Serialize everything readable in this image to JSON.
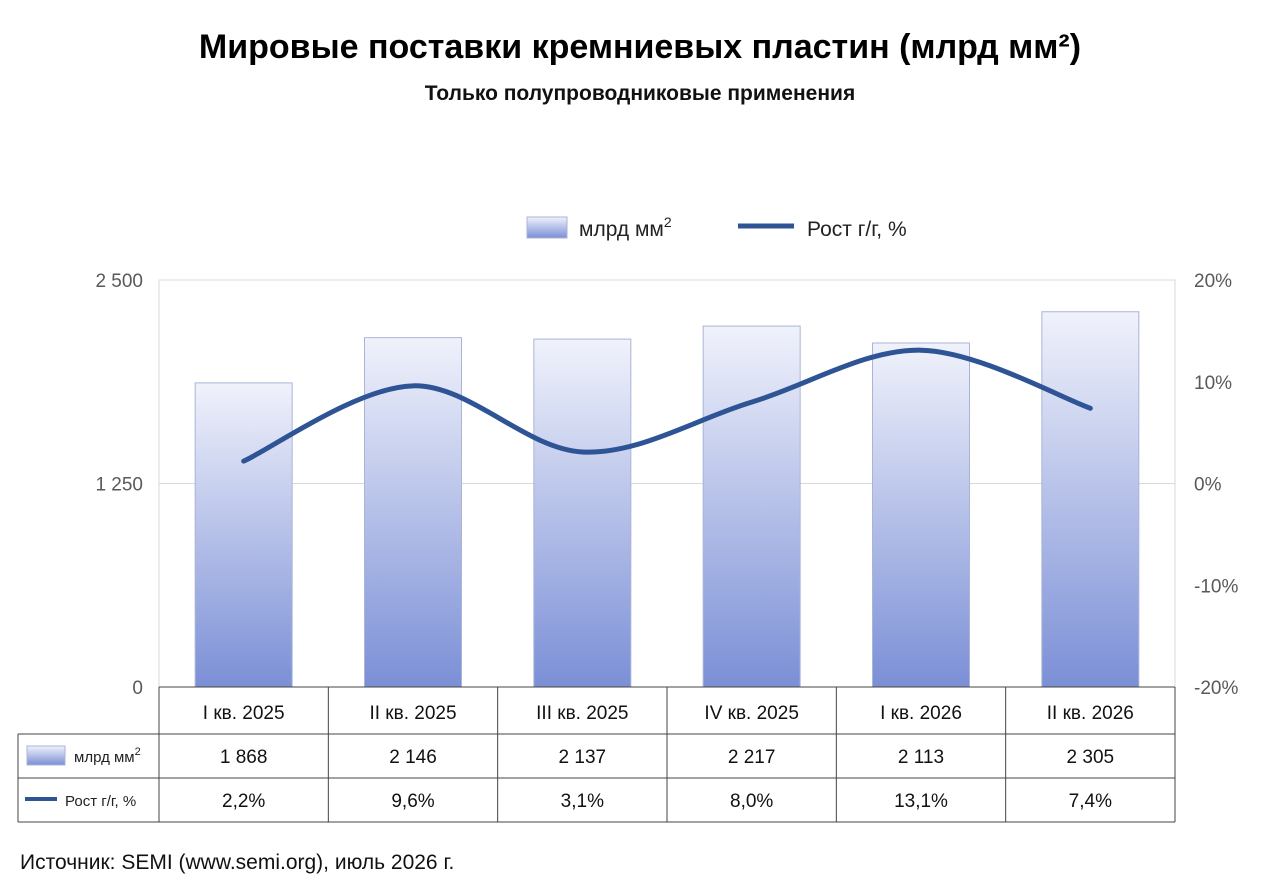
{
  "title": "Мировые поставки кремниевых пластин (млрд мм²)",
  "subtitle": "Только полупроводниковые применения",
  "source": "Источник: SEMI (www.semi.org), июль 2026 г.",
  "colors": {
    "bar_top": "#f0f2fb",
    "bar_bottom": "#7b8fd6",
    "bar_stroke": "#aab4d8",
    "line": "#2e5496",
    "grid": "#d9d9d9",
    "axis_text": "#595959"
  },
  "chart_data": {
    "type": "bar",
    "categories": [
      "I кв. 2025",
      "II кв. 2025",
      "III кв. 2025",
      "IV кв. 2025",
      "I кв. 2026",
      "II кв. 2026"
    ],
    "series": [
      {
        "name": "млрд мм",
        "name_sup": "2",
        "type": "bar",
        "axis": "left",
        "values": [
          1868,
          2146,
          2137,
          2217,
          2113,
          2305
        ],
        "labels": [
          "1 868",
          "2 146",
          "2 137",
          "2 217",
          "2 113",
          "2 305"
        ]
      },
      {
        "name": "Рост г/г, %",
        "type": "line",
        "axis": "right",
        "values": [
          2.2,
          9.6,
          3.1,
          8.0,
          13.1,
          7.4
        ],
        "labels": [
          "2,2%",
          "9,6%",
          "3,1%",
          "8,0%",
          "13,1%",
          "7,4%"
        ]
      }
    ],
    "y_left": {
      "ylim": [
        0,
        2500
      ],
      "ticks": [
        0,
        1250,
        2500
      ],
      "tick_labels": [
        "0",
        "1 250",
        "2 500"
      ]
    },
    "y_right": {
      "ylim": [
        -20,
        20
      ],
      "ticks": [
        -20,
        -10,
        0,
        10,
        20
      ],
      "tick_labels": [
        "-20%",
        "-10%",
        "0%",
        "10%",
        "20%"
      ]
    },
    "grid": true,
    "legend_position": "top-center",
    "data_table": true
  }
}
